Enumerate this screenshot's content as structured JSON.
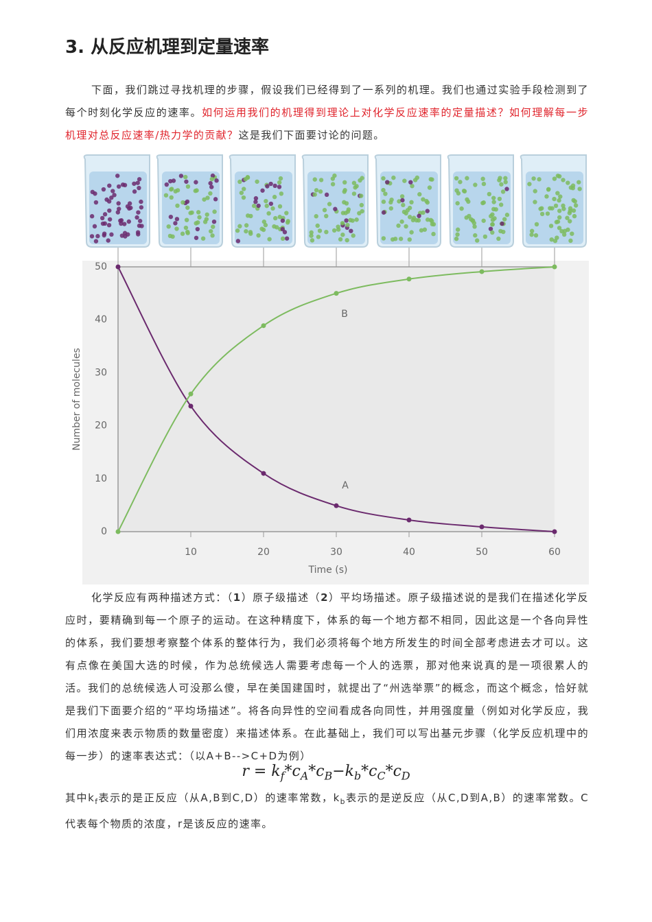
{
  "header": {
    "title": "3. 从反应机理到定量速率"
  },
  "intro": [
    "下面，我们跳过寻找机理的步骤，假设我们已经得到了一系列的机理。我们也通过实验手段检测到了每个时刻化学反应的速率。",
    "如何运用我们的机理得到理论上对化学反应速率的定量描述？如何理解每一步机理对总反应速率/热力学的贡献？",
    "这是我们下面要讨论的问题。"
  ],
  "figure": {
    "type": "line",
    "x": [
      0,
      10,
      20,
      30,
      40,
      50,
      60
    ],
    "series": [
      {
        "name": "A",
        "color": "#6b2a6e",
        "values": [
          50,
          23.7,
          11.0,
          4.9,
          2.2,
          0.9,
          0
        ]
      },
      {
        "name": "B",
        "color": "#7dbb5f",
        "values": [
          0,
          26.0,
          38.9,
          45.0,
          47.7,
          49.1,
          50
        ]
      }
    ],
    "xlim": [
      0,
      60
    ],
    "ylim": [
      0,
      50
    ],
    "xticks": [
      10,
      20,
      30,
      40,
      50,
      60
    ],
    "yticks": [
      0,
      10,
      20,
      30,
      40,
      50
    ],
    "xlabel": "Time (s)",
    "ylabel": "Number of molecules"
  },
  "body": [
    "化学反应有两种描述方式：（",
    "1",
    "）原子级描述（",
    "2",
    "）平均场描述。原子级描述说的是我们在描述化学反应时，要精确到每一个原子的运动。在这种精度下，体系的每一个地方都不相同，因此这是一个各向异性的体系，我们要想考察整个体系的整体行为，我们必须将每个地方所发生的时间全部考虑进去才可以。这有点像在美国大选的时候，作为总统候选人需要考虑每一个人的选票，那对他来说真的是一项很累人的活。我们的总统候选人可没那么傻，早在美国建国时，就提出了“州选举票”的概念，而这个概念，恰好就是我们下面要介绍的“平均场描述”。将各向异性的空间看成各向同性，并用强度量（例如对化学反应，我们用浓度来表示物质的数量密度）来描述体系。在此基础上，我们可以写出基元步骤（化学反应机理中的每一步）的速率表达式：（以A+B-->C+D为例）"
  ],
  "formula": [
    "r = k",
    "f",
    "*c",
    "A",
    "*c",
    "B",
    "−k",
    "b",
    "*c",
    "C",
    "*c",
    "D"
  ],
  "closing": [
    "其中k",
    "f",
    "表示的是正反应（从A,B到C,D）的速率常数，k",
    "b",
    "表示的是逆反应（从C,D到A,B）的速率常数。C代表每个物质的浓度，r是该反应的速率。"
  ]
}
